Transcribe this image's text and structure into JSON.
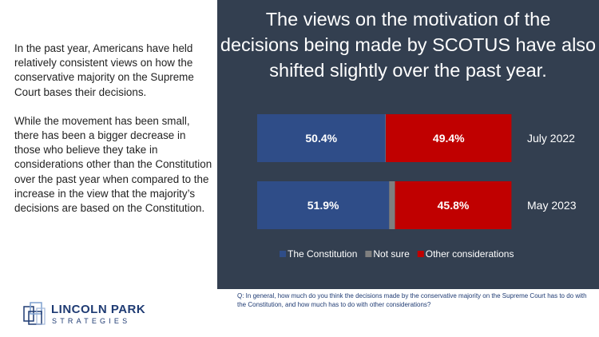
{
  "left": {
    "paragraph1": "In the past year, Americans have held relatively consistent views on how the conservative majority on the Supreme Court bases their decisions.",
    "paragraph2": "While the movement has been small, there has been a bigger decrease in those who believe they take in considerations other than the Constitution over the past year when compared to the increase in the view that the majority’s decisions are based on the Constitution."
  },
  "panel": {
    "title_line1": "The views on the motivation of the",
    "title_line2": "decisions being made by SCOTUS have also",
    "title_line3": "shifted slightly over the past year."
  },
  "footnote": "Q: In general, how much do you think the decisions made by the conservative majority on the Supreme Court has to do with the Constitution, and how much has to do with other considerations?",
  "logo": {
    "line1": "LINCOLN PARK",
    "line2": "STRATEGIES"
  },
  "colors": {
    "constitution": "#2f4d88",
    "not_sure": "#7f7f7f",
    "other": "#c00000",
    "panel_bg": "#333f50"
  },
  "chart_data": {
    "type": "bar",
    "orientation": "horizontal",
    "stacked": true,
    "categories": [
      "July 2022",
      "May 2023"
    ],
    "series": [
      {
        "name": "The Constitution",
        "values": [
          50.4,
          51.9
        ],
        "labels": [
          "50.4%",
          "51.9%"
        ]
      },
      {
        "name": "Not sure",
        "values": [
          0.2,
          2.3
        ],
        "labels": [
          "",
          ""
        ]
      },
      {
        "name": "Other considerations",
        "values": [
          49.4,
          45.8
        ],
        "labels": [
          "49.4%",
          "45.8%"
        ]
      }
    ],
    "legend_position": "bottom",
    "xlim": [
      0,
      100.5
    ]
  }
}
